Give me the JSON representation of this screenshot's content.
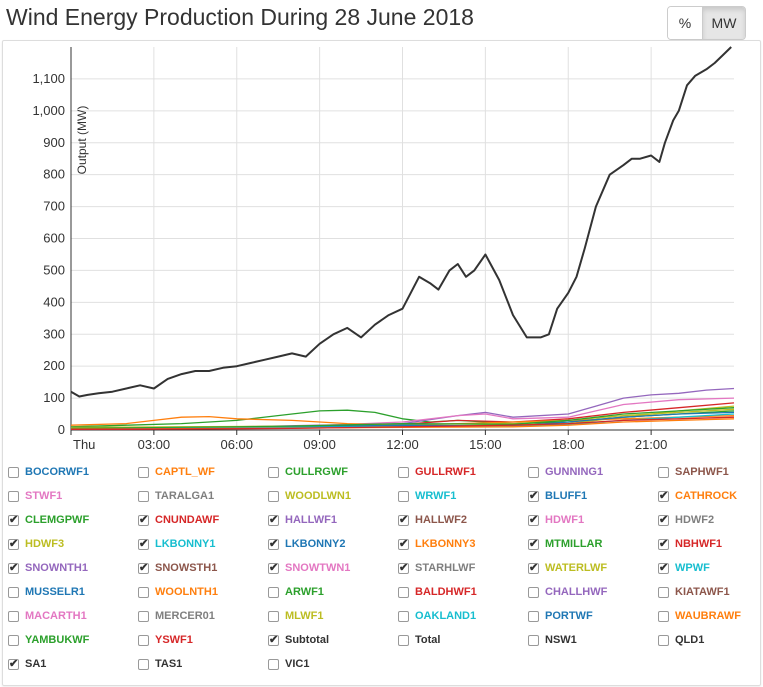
{
  "header": {
    "title": "Wind Energy Production During 28 June 2018",
    "unit_buttons": [
      {
        "label": "%",
        "active": false
      },
      {
        "label": "MW",
        "active": true
      }
    ]
  },
  "chart_data": {
    "type": "line",
    "ylabel": "Output (MW)",
    "ylim": [
      0,
      1200
    ],
    "yticks": [
      0,
      100,
      200,
      300,
      400,
      500,
      600,
      700,
      800,
      900,
      1000,
      1100
    ],
    "ytick_labels": [
      "0",
      "100",
      "200",
      "300",
      "400",
      "500",
      "600",
      "700",
      "800",
      "900",
      "1,000",
      "1,100"
    ],
    "xlim": [
      0,
      24
    ],
    "xticks": [
      0,
      3,
      6,
      9,
      12,
      15,
      18,
      21
    ],
    "xtick_labels": [
      "Thu",
      "03:00",
      "06:00",
      "09:00",
      "12:00",
      "15:00",
      "18:00",
      "21:00"
    ],
    "grid": true,
    "series": [
      {
        "name": "Subtotal",
        "color": "#333333",
        "x": [
          0,
          0.3,
          0.6,
          1,
          1.5,
          2,
          2.5,
          3,
          3.5,
          4,
          4.5,
          5,
          5.5,
          6,
          6.5,
          7,
          7.5,
          8,
          8.5,
          9,
          9.5,
          10,
          10.5,
          11,
          11.5,
          12,
          12.3,
          12.6,
          13,
          13.3,
          13.7,
          14,
          14.3,
          14.6,
          15,
          15.5,
          16,
          16.5,
          17,
          17.3,
          17.6,
          18,
          18.3,
          18.6,
          19,
          19.5,
          20,
          20.3,
          20.6,
          21,
          21.3,
          21.5,
          21.8,
          22,
          22.3,
          22.6,
          23,
          23.3,
          23.6,
          23.9
        ],
        "y": [
          120,
          105,
          110,
          115,
          120,
          130,
          140,
          130,
          160,
          175,
          185,
          185,
          195,
          200,
          210,
          220,
          230,
          240,
          230,
          270,
          300,
          320,
          290,
          330,
          360,
          380,
          430,
          480,
          460,
          440,
          500,
          520,
          480,
          500,
          550,
          470,
          360,
          290,
          290,
          300,
          380,
          430,
          480,
          570,
          700,
          800,
          830,
          850,
          850,
          860,
          840,
          900,
          970,
          1000,
          1080,
          1110,
          1130,
          1150,
          1175,
          1200
        ]
      },
      {
        "name": "CLEMGPWF",
        "color": "#2ca02c",
        "x": [
          0,
          2,
          4,
          6,
          8,
          9,
          10,
          11,
          12,
          13,
          14,
          16,
          18,
          20,
          22,
          24
        ],
        "y": [
          10,
          15,
          20,
          30,
          50,
          60,
          62,
          55,
          35,
          25,
          30,
          20,
          25,
          40,
          50,
          60
        ]
      },
      {
        "name": "HDWF3",
        "color": "#bcbd22",
        "x": [
          0,
          3,
          6,
          9,
          12,
          15,
          18,
          20,
          22,
          24
        ],
        "y": [
          5,
          8,
          10,
          12,
          10,
          15,
          20,
          40,
          60,
          75
        ]
      },
      {
        "name": "SNOWNTH1",
        "color": "#9467bd",
        "x": [
          0,
          3,
          6,
          9,
          12,
          14,
          15,
          16,
          18,
          19,
          20,
          21,
          22,
          23,
          24
        ],
        "y": [
          5,
          5,
          10,
          15,
          20,
          45,
          55,
          40,
          50,
          75,
          100,
          110,
          115,
          125,
          130
        ]
      },
      {
        "name": "HALLWF1",
        "color": "#e377c2",
        "x": [
          0,
          4,
          8,
          12,
          14,
          15,
          16,
          18,
          20,
          22,
          24
        ],
        "y": [
          3,
          5,
          10,
          25,
          45,
          50,
          35,
          40,
          80,
          95,
          100
        ]
      },
      {
        "name": "CNUNDAWF",
        "color": "#d62728",
        "x": [
          0,
          4,
          8,
          12,
          14,
          16,
          18,
          20,
          22,
          24
        ],
        "y": [
          2,
          4,
          8,
          18,
          30,
          25,
          35,
          55,
          70,
          85
        ]
      },
      {
        "name": "LKBONNY3",
        "color": "#ff7f0e",
        "x": [
          0,
          2,
          3,
          4,
          5,
          6,
          8,
          10,
          12,
          14,
          16,
          18,
          20,
          22,
          24
        ],
        "y": [
          15,
          20,
          30,
          40,
          42,
          35,
          30,
          20,
          15,
          20,
          25,
          30,
          35,
          40,
          45
        ]
      },
      {
        "name": "WATERLWF",
        "color": "#bcbd22",
        "x": [
          0,
          4,
          8,
          12,
          16,
          18,
          20,
          22,
          24
        ],
        "y": [
          8,
          10,
          12,
          18,
          20,
          30,
          45,
          55,
          65
        ]
      },
      {
        "name": "LKBONNY2",
        "color": "#1f77b4",
        "x": [
          0,
          4,
          8,
          12,
          16,
          18,
          20,
          22,
          24
        ],
        "y": [
          5,
          6,
          10,
          15,
          12,
          25,
          40,
          50,
          55
        ]
      },
      {
        "name": "MTMILLAR",
        "color": "#2ca02c",
        "x": [
          0,
          4,
          8,
          12,
          16,
          18,
          20,
          22,
          24
        ],
        "y": [
          5,
          8,
          12,
          20,
          18,
          30,
          50,
          60,
          70
        ]
      },
      {
        "name": "WPWF",
        "color": "#17becf",
        "x": [
          0,
          4,
          8,
          12,
          16,
          18,
          20,
          22,
          24
        ],
        "y": [
          2,
          5,
          8,
          10,
          12,
          18,
          30,
          40,
          50
        ]
      },
      {
        "name": "CATHROCK",
        "color": "#ff7f0e",
        "x": [
          0,
          4,
          8,
          12,
          16,
          18,
          20,
          22,
          24
        ],
        "y": [
          3,
          4,
          6,
          8,
          10,
          15,
          25,
          30,
          35
        ]
      },
      {
        "name": "NBHWF1",
        "color": "#d62728",
        "x": [
          0,
          4,
          8,
          12,
          16,
          18,
          20,
          22,
          24
        ],
        "y": [
          2,
          3,
          5,
          10,
          15,
          20,
          30,
          35,
          40
        ]
      }
    ]
  },
  "legend": [
    {
      "label": "BOCORWF1",
      "color": "#1f77b4",
      "checked": false
    },
    {
      "label": "CAPTL_WF",
      "color": "#ff7f0e",
      "checked": false
    },
    {
      "label": "CULLRGWF",
      "color": "#2ca02c",
      "checked": false
    },
    {
      "label": "GULLRWF1",
      "color": "#d62728",
      "checked": false
    },
    {
      "label": "GUNNING1",
      "color": "#9467bd",
      "checked": false
    },
    {
      "label": "SAPHWF1",
      "color": "#8c564b",
      "checked": false
    },
    {
      "label": "STWF1",
      "color": "#e377c2",
      "checked": false
    },
    {
      "label": "TARALGA1",
      "color": "#7f7f7f",
      "checked": false
    },
    {
      "label": "WOODLWN1",
      "color": "#bcbd22",
      "checked": false
    },
    {
      "label": "WRWF1",
      "color": "#17becf",
      "checked": false
    },
    {
      "label": "BLUFF1",
      "color": "#1f77b4",
      "checked": true
    },
    {
      "label": "CATHROCK",
      "color": "#ff7f0e",
      "checked": true
    },
    {
      "label": "CLEMGPWF",
      "color": "#2ca02c",
      "checked": true
    },
    {
      "label": "CNUNDAWF",
      "color": "#d62728",
      "checked": true
    },
    {
      "label": "HALLWF1",
      "color": "#9467bd",
      "checked": true
    },
    {
      "label": "HALLWF2",
      "color": "#8c564b",
      "checked": true
    },
    {
      "label": "HDWF1",
      "color": "#e377c2",
      "checked": true
    },
    {
      "label": "HDWF2",
      "color": "#7f7f7f",
      "checked": true
    },
    {
      "label": "HDWF3",
      "color": "#bcbd22",
      "checked": true
    },
    {
      "label": "LKBONNY1",
      "color": "#17becf",
      "checked": true
    },
    {
      "label": "LKBONNY2",
      "color": "#1f77b4",
      "checked": true
    },
    {
      "label": "LKBONNY3",
      "color": "#ff7f0e",
      "checked": true
    },
    {
      "label": "MTMILLAR",
      "color": "#2ca02c",
      "checked": true
    },
    {
      "label": "NBHWF1",
      "color": "#d62728",
      "checked": true
    },
    {
      "label": "SNOWNTH1",
      "color": "#9467bd",
      "checked": true
    },
    {
      "label": "SNOWSTH1",
      "color": "#8c564b",
      "checked": true
    },
    {
      "label": "SNOWTWN1",
      "color": "#e377c2",
      "checked": true
    },
    {
      "label": "STARHLWF",
      "color": "#7f7f7f",
      "checked": true
    },
    {
      "label": "WATERLWF",
      "color": "#bcbd22",
      "checked": true
    },
    {
      "label": "WPWF",
      "color": "#17becf",
      "checked": true
    },
    {
      "label": "MUSSELR1",
      "color": "#1f77b4",
      "checked": false
    },
    {
      "label": "WOOLNTH1",
      "color": "#ff7f0e",
      "checked": false
    },
    {
      "label": "ARWF1",
      "color": "#2ca02c",
      "checked": false
    },
    {
      "label": "BALDHWF1",
      "color": "#d62728",
      "checked": false
    },
    {
      "label": "CHALLHWF",
      "color": "#9467bd",
      "checked": false
    },
    {
      "label": "KIATAWF1",
      "color": "#8c564b",
      "checked": false
    },
    {
      "label": "MACARTH1",
      "color": "#e377c2",
      "checked": false
    },
    {
      "label": "MERCER01",
      "color": "#7f7f7f",
      "checked": false
    },
    {
      "label": "MLWF1",
      "color": "#bcbd22",
      "checked": false
    },
    {
      "label": "OAKLAND1",
      "color": "#17becf",
      "checked": false
    },
    {
      "label": "PORTWF",
      "color": "#1f77b4",
      "checked": false
    },
    {
      "label": "WAUBRAWF",
      "color": "#ff7f0e",
      "checked": false
    },
    {
      "label": "YAMBUKWF",
      "color": "#2ca02c",
      "checked": false
    },
    {
      "label": "YSWF1",
      "color": "#d62728",
      "checked": false
    },
    {
      "label": "Subtotal",
      "color": "#333333",
      "checked": true
    },
    {
      "label": "Total",
      "color": "#333333",
      "checked": false
    },
    {
      "label": "NSW1",
      "color": "#333333",
      "checked": false
    },
    {
      "label": "QLD1",
      "color": "#333333",
      "checked": false
    },
    {
      "label": "SA1",
      "color": "#333333",
      "checked": true
    },
    {
      "label": "TAS1",
      "color": "#333333",
      "checked": false
    },
    {
      "label": "VIC1",
      "color": "#333333",
      "checked": false
    }
  ]
}
